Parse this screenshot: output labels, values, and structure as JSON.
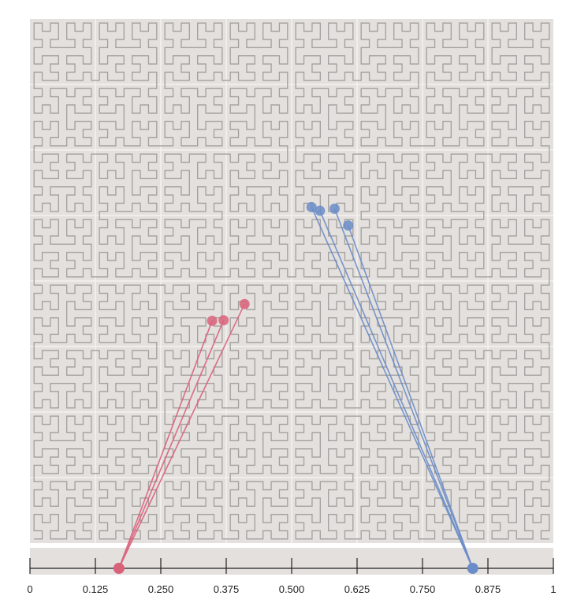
{
  "hilbert": {
    "order": 6,
    "background_color": "#e3e0dd",
    "curve_color": "#a29f9d",
    "grid_color": "#f4f2f0",
    "grid_divisions": 8
  },
  "axis": {
    "min": 0,
    "max": 1,
    "tick_values": [
      0,
      0.125,
      0.25,
      0.375,
      0.5,
      0.625,
      0.75,
      0.875,
      1
    ],
    "tick_labels": [
      "0",
      "0.125",
      "0.250",
      "0.375",
      "0.500",
      "0.625",
      "0.750",
      "0.875",
      "1"
    ],
    "strip_color": "#e3e0dd",
    "line_color": "#222222"
  },
  "groups": [
    {
      "name": "red",
      "color": "#d9617a",
      "axis_value": 0.17,
      "points": [
        [
          0.348,
          0.424
        ],
        [
          0.37,
          0.425
        ],
        [
          0.41,
          0.456
        ]
      ]
    },
    {
      "name": "blue",
      "color": "#6a8cc8",
      "axis_value": 0.846,
      "points": [
        [
          0.608,
          0.606
        ],
        [
          0.538,
          0.641
        ],
        [
          0.554,
          0.634
        ],
        [
          0.582,
          0.638
        ]
      ]
    }
  ]
}
